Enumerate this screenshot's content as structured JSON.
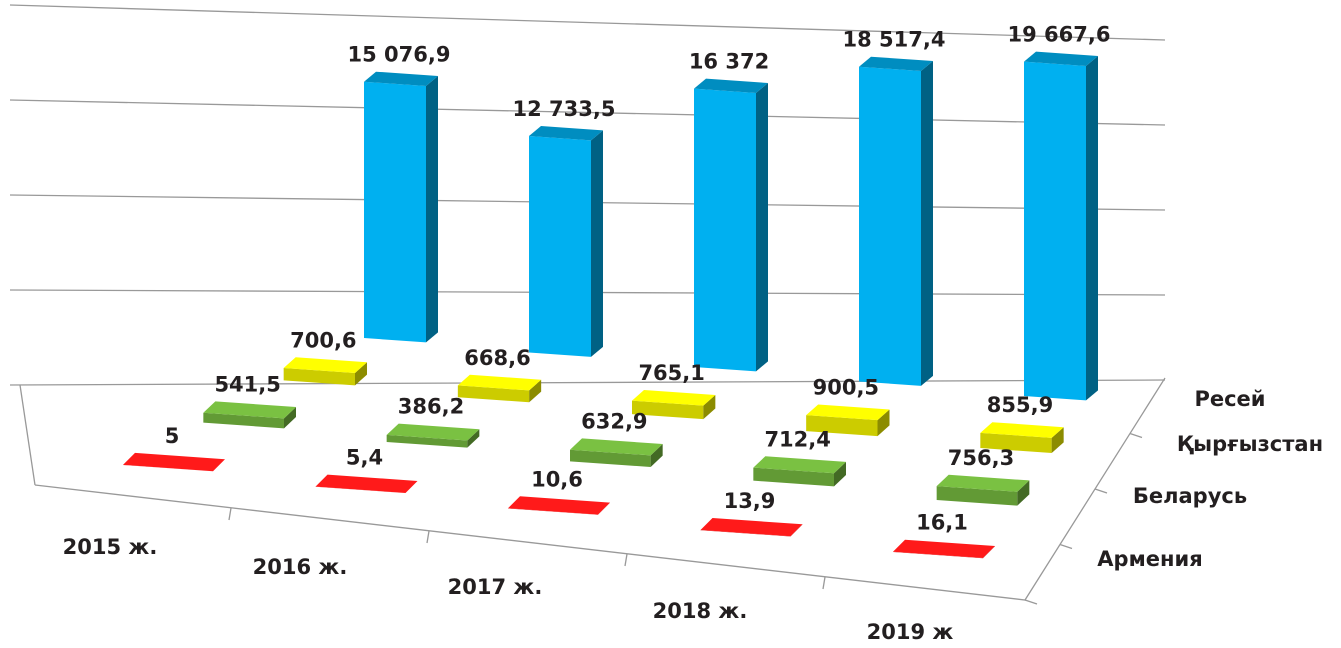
{
  "chart_data": {
    "type": "bar3d",
    "categories": [
      "2015 ж.",
      "2016 ж.",
      "2017 ж.",
      "2018 ж.",
      "2019 ж"
    ],
    "series": [
      {
        "name": "Армения",
        "color": "#ff1a1a",
        "values": [
          5,
          5.4,
          10.6,
          13.9,
          16.1
        ],
        "value_labels": [
          "5",
          "5,4",
          "10,6",
          "13,9",
          "16,1"
        ]
      },
      {
        "name": "Беларусь",
        "color": "#7ac142",
        "values": [
          541.5,
          386.2,
          632.9,
          712.4,
          756.3
        ],
        "value_labels": [
          "541,5",
          "386,2",
          "632,9",
          "712,4",
          "756,3"
        ]
      },
      {
        "name": "Қырғызстан",
        "color": "#ffff00",
        "values": [
          700.6,
          668.6,
          765.1,
          900.5,
          855.9
        ],
        "value_labels": [
          "700,6",
          "668,6",
          "765,1",
          "900,5",
          "855,9"
        ]
      },
      {
        "name": "Ресей",
        "color": "#00b0f0",
        "values": [
          15076.9,
          12733.5,
          16372,
          18517.4,
          19667.6
        ],
        "value_labels": [
          "15 076,9",
          "12 733,5",
          "16 372",
          "18 517,4",
          "19 667,6"
        ]
      }
    ],
    "ylim": [
      0,
      20000
    ],
    "yticks": [
      0,
      5000,
      10000,
      15000,
      20000
    ],
    "grid": true
  }
}
